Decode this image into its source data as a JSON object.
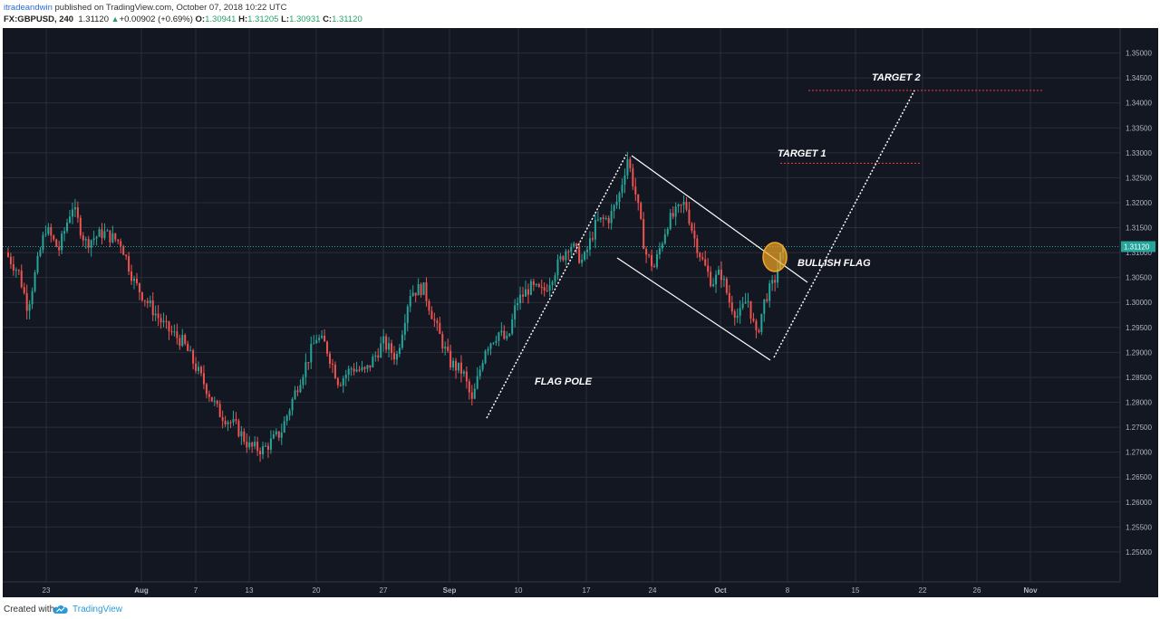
{
  "header": {
    "author": "itradeandwin",
    "published_text": "published on TradingView.com, October 07, 2018 10:22 UTC",
    "symbol": "FX:GBPUSD, 240",
    "last": "1.31120",
    "change": "+0.00902 (+0.69%)",
    "change_arrow": "▲",
    "open_label": "O:",
    "open": "1.30941",
    "high_label": "H:",
    "high": "1.31205",
    "low_label": "L:",
    "low": "1.30931",
    "close_label": "C:",
    "close": "1.31120"
  },
  "footer": {
    "created_with": "Created with",
    "brand": "TradingView",
    "logo_icon": "tradingview-cloud-icon"
  },
  "colors": {
    "background": "#131722",
    "grid": "#2a2e39",
    "bull": "#26a69a",
    "bear": "#ef5350",
    "price_line": "#26a69a",
    "target_line": "#e53935",
    "drawing": "#ffffff",
    "highlight": "#f5a623",
    "link": "#2a6fd6"
  },
  "chart_data": {
    "type": "candlestick",
    "symbol": "FX:GBPUSD",
    "timeframe": "240",
    "ylim": [
      1.244,
      1.355
    ],
    "y_ticks": [
      "1.25000",
      "1.25500",
      "1.26000",
      "1.26500",
      "1.27000",
      "1.27500",
      "1.28000",
      "1.28500",
      "1.29000",
      "1.29500",
      "1.30000",
      "1.30500",
      "1.31000",
      "1.31500",
      "1.32000",
      "1.32500",
      "1.33000",
      "1.33500",
      "1.34000",
      "1.34500",
      "1.35000"
    ],
    "x_ticks": [
      "23",
      "Aug",
      "7",
      "13",
      "20",
      "27",
      "Sep",
      "10",
      "17",
      "24",
      "Oct",
      "8",
      "15",
      "22",
      "26",
      "Nov"
    ],
    "current_price": "1.31120",
    "close_path": [
      {
        "t": 0.0,
        "p": 1.31
      },
      {
        "t": 1.5,
        "p": 1.306
      },
      {
        "t": 2.5,
        "p": 1.299
      },
      {
        "t": 4.5,
        "p": 1.315
      },
      {
        "t": 6.0,
        "p": 1.3105
      },
      {
        "t": 7.5,
        "p": 1.3195
      },
      {
        "t": 9.0,
        "p": 1.312
      },
      {
        "t": 11.0,
        "p": 1.314
      },
      {
        "t": 13.0,
        "p": 1.312
      },
      {
        "t": 14.5,
        "p": 1.304
      },
      {
        "t": 16.0,
        "p": 1.3
      },
      {
        "t": 18.0,
        "p": 1.295
      },
      {
        "t": 20.0,
        "p": 1.292
      },
      {
        "t": 22.0,
        "p": 1.285
      },
      {
        "t": 24.0,
        "p": 1.278
      },
      {
        "t": 26.0,
        "p": 1.275
      },
      {
        "t": 27.5,
        "p": 1.271
      },
      {
        "t": 29.0,
        "p": 1.2705
      },
      {
        "t": 31.0,
        "p": 1.274
      },
      {
        "t": 33.0,
        "p": 1.284
      },
      {
        "t": 35.0,
        "p": 1.293
      },
      {
        "t": 36.0,
        "p": 1.2915
      },
      {
        "t": 37.5,
        "p": 1.284
      },
      {
        "t": 39.0,
        "p": 1.287
      },
      {
        "t": 40.5,
        "p": 1.286
      },
      {
        "t": 42.5,
        "p": 1.292
      },
      {
        "t": 44.0,
        "p": 1.289
      },
      {
        "t": 45.5,
        "p": 1.302
      },
      {
        "t": 47.0,
        "p": 1.303
      },
      {
        "t": 48.5,
        "p": 1.295
      },
      {
        "t": 50.0,
        "p": 1.288
      },
      {
        "t": 51.5,
        "p": 1.286
      },
      {
        "t": 52.5,
        "p": 1.28
      },
      {
        "t": 54.0,
        "p": 1.291
      },
      {
        "t": 55.5,
        "p": 1.294
      },
      {
        "t": 56.5,
        "p": 1.292
      },
      {
        "t": 57.5,
        "p": 1.3
      },
      {
        "t": 59.0,
        "p": 1.303
      },
      {
        "t": 60.5,
        "p": 1.302
      },
      {
        "t": 62.0,
        "p": 1.307
      },
      {
        "t": 63.5,
        "p": 1.312
      },
      {
        "t": 65.0,
        "p": 1.308
      },
      {
        "t": 66.5,
        "p": 1.316
      },
      {
        "t": 68.0,
        "p": 1.317
      },
      {
        "t": 69.0,
        "p": 1.321
      },
      {
        "t": 70.0,
        "p": 1.329
      },
      {
        "t": 71.0,
        "p": 1.321
      },
      {
        "t": 72.0,
        "p": 1.31
      },
      {
        "t": 73.0,
        "p": 1.307
      },
      {
        "t": 74.5,
        "p": 1.316
      },
      {
        "t": 75.5,
        "p": 1.318
      },
      {
        "t": 76.5,
        "p": 1.32
      },
      {
        "t": 77.5,
        "p": 1.313
      },
      {
        "t": 78.5,
        "p": 1.308
      },
      {
        "t": 79.5,
        "p": 1.304
      },
      {
        "t": 80.5,
        "p": 1.306
      },
      {
        "t": 81.5,
        "p": 1.3
      },
      {
        "t": 82.5,
        "p": 1.297
      },
      {
        "t": 83.5,
        "p": 1.301
      },
      {
        "t": 84.5,
        "p": 1.293
      },
      {
        "t": 85.5,
        "p": 1.301
      },
      {
        "t": 86.5,
        "p": 1.304
      },
      {
        "t": 87.5,
        "p": 1.3112
      }
    ],
    "annotations": [
      "FLAG POLE",
      "BULLISH FLAG",
      "TARGET 1",
      "TARGET 2"
    ],
    "target_levels": [
      1.3279,
      1.3425
    ],
    "grid": true
  }
}
